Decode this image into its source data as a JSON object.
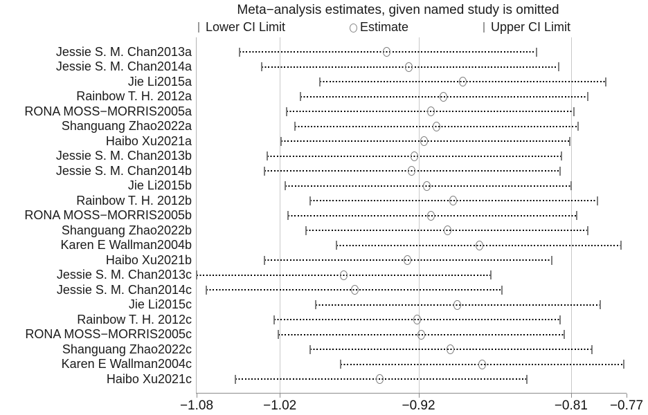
{
  "colors": {
    "background": "#ffffff",
    "dotted_line": "#000000",
    "ci_cap": "#7d7d7d",
    "estimate_marker_outline": "#7d7d7d",
    "gridline": "#c8c8c8",
    "axis": "#8a8a8a",
    "text": "#1a1a1a"
  },
  "chart_data": {
    "type": "scatter",
    "variant": "leave-one-out sensitivity forest plot (dotted CI lines with end caps, hollow circle estimates)",
    "title": "Meta−analysis estimates, given named study is omitted",
    "legend": [
      {
        "marker": "vertical-bar",
        "label": "Lower CI Limit"
      },
      {
        "marker": "hollow-circle",
        "label": "Estimate"
      },
      {
        "marker": "vertical-bar",
        "label": "Upper CI Limit"
      }
    ],
    "legend_position": "top",
    "x_range": [
      -1.08,
      -0.77
    ],
    "x_ticks": [
      {
        "label": "−1.08",
        "value": -1.08
      },
      {
        "label": "−1.02",
        "value": -1.02
      },
      {
        "label": "−0.92",
        "value": -0.92
      },
      {
        "label": "−0.81",
        "value": -0.81
      },
      {
        "label": "−0.77",
        "value": -0.77
      }
    ],
    "gridline_values": [
      -1.02,
      -0.92,
      -0.81
    ],
    "grid": "vertical reference lines at overall lower CI limit, overall estimate, overall upper CI limit",
    "studies": [
      {
        "label": "Jessie S. M. Chan2013a",
        "lower": -1.049,
        "estimate": -0.943,
        "upper": -0.835
      },
      {
        "label": "Jessie S. M. Chan2014a",
        "lower": -1.033,
        "estimate": -0.927,
        "upper": -0.819
      },
      {
        "label": "Jie Li2015a",
        "lower": -0.991,
        "estimate": -0.888,
        "upper": -0.785
      },
      {
        "label": "Rainbow T. H. 2012a",
        "lower": -1.005,
        "estimate": -0.902,
        "upper": -0.798
      },
      {
        "label": "RONA MOSS−MORRIS2005a",
        "lower": -1.015,
        "estimate": -0.911,
        "upper": -0.808
      },
      {
        "label": "Shanguang Zhao2022a",
        "lower": -1.009,
        "estimate": -0.907,
        "upper": -0.805
      },
      {
        "label": "Haibo Xu2021a",
        "lower": -1.019,
        "estimate": -0.916,
        "upper": -0.811
      },
      {
        "label": "Jessie S. M. Chan2013b",
        "lower": -1.029,
        "estimate": -0.923,
        "upper": -0.817
      },
      {
        "label": "Jessie S. M. Chan2014b",
        "lower": -1.031,
        "estimate": -0.925,
        "upper": -0.818
      },
      {
        "label": "Jie Li2015b",
        "lower": -1.016,
        "estimate": -0.914,
        "upper": -0.81
      },
      {
        "label": "Rainbow T. H. 2012b",
        "lower": -0.998,
        "estimate": -0.895,
        "upper": -0.791
      },
      {
        "label": "RONA MOSS−MORRIS2005b",
        "lower": -1.014,
        "estimate": -0.911,
        "upper": -0.806
      },
      {
        "label": "Shanguang Zhao2022b",
        "lower": -1.001,
        "estimate": -0.899,
        "upper": -0.798
      },
      {
        "label": "Karen E Wallman2004b",
        "lower": -0.979,
        "estimate": -0.876,
        "upper": -0.774
      },
      {
        "label": "Haibo Xu2021b",
        "lower": -1.031,
        "estimate": -0.928,
        "upper": -0.824
      },
      {
        "label": "Jessie S. M. Chan2013c",
        "lower": -1.08,
        "estimate": -0.974,
        "upper": -0.868
      },
      {
        "label": "Jessie S. M. Chan2014c",
        "lower": -1.073,
        "estimate": -0.966,
        "upper": -0.86
      },
      {
        "label": "Jie Li2015c",
        "lower": -0.994,
        "estimate": -0.892,
        "upper": -0.789
      },
      {
        "label": "Rainbow T. H. 2012c",
        "lower": -1.024,
        "estimate": -0.921,
        "upper": -0.818
      },
      {
        "label": "RONA MOSS−MORRIS2005c",
        "lower": -1.021,
        "estimate": -0.918,
        "upper": -0.815
      },
      {
        "label": "Shanguang Zhao2022c",
        "lower": -0.998,
        "estimate": -0.897,
        "upper": -0.795
      },
      {
        "label": "Karen E Wallman2004c",
        "lower": -0.976,
        "estimate": -0.874,
        "upper": -0.772
      },
      {
        "label": "Haibo Xu2021c",
        "lower": -1.052,
        "estimate": -0.948,
        "upper": -0.842
      }
    ]
  }
}
